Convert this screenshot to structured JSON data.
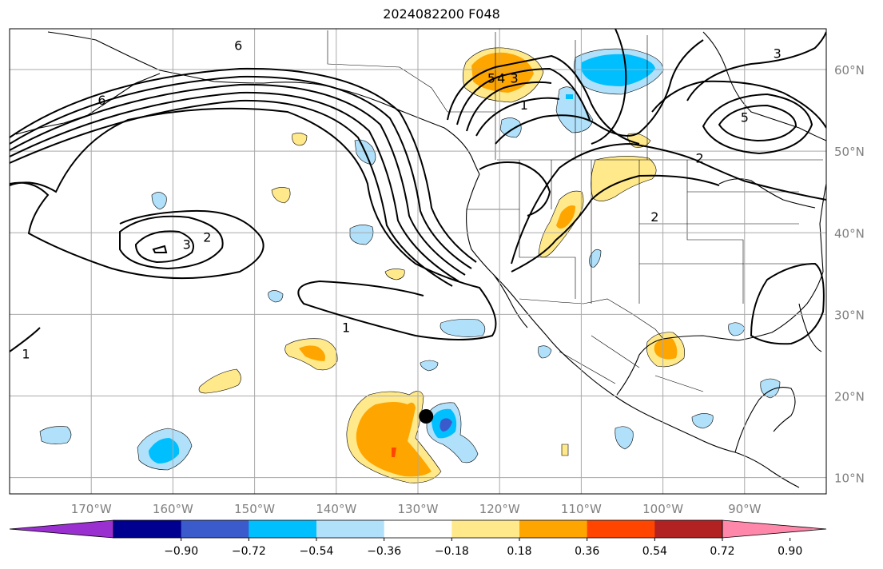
{
  "title": "2024082200 F048",
  "map": {
    "projection": "PlateCarree",
    "lon_range": [
      -180,
      -80
    ],
    "lat_range": [
      8,
      65
    ],
    "gridlines": true,
    "lon_ticks": [
      {
        "lon": -170,
        "label": "170°W"
      },
      {
        "lon": -160,
        "label": "160°W"
      },
      {
        "lon": -150,
        "label": "150°W"
      },
      {
        "lon": -140,
        "label": "140°W"
      },
      {
        "lon": -130,
        "label": "130°W"
      },
      {
        "lon": -120,
        "label": "120°W"
      },
      {
        "lon": -110,
        "label": "110°W"
      },
      {
        "lon": -100,
        "label": "100°W"
      },
      {
        "lon": -90,
        "label": "90°W"
      }
    ],
    "lat_ticks": [
      {
        "lat": 60,
        "label": "60°N"
      },
      {
        "lat": 50,
        "label": "50°N"
      },
      {
        "lat": 40,
        "label": "40°N"
      },
      {
        "lat": 30,
        "label": "30°N"
      },
      {
        "lat": 20,
        "label": "20°N"
      },
      {
        "lat": 10,
        "label": "10°N"
      }
    ],
    "marker": {
      "lon": -129,
      "lat": 17.5,
      "color": "#000000"
    },
    "contour_labels": [
      {
        "lon": -168.7,
        "lat": 56.3,
        "text": "6"
      },
      {
        "lon": -152.0,
        "lat": 63.0,
        "text": "6"
      },
      {
        "lon": -158.3,
        "lat": 38.6,
        "text": "3"
      },
      {
        "lon": -155.8,
        "lat": 39.5,
        "text": "2"
      },
      {
        "lon": -138.8,
        "lat": 28.4,
        "text": "1"
      },
      {
        "lon": -178.0,
        "lat": 25.2,
        "text": "1"
      },
      {
        "lon": -121.0,
        "lat": 59.0,
        "text": "5"
      },
      {
        "lon": -119.8,
        "lat": 59.0,
        "text": "4"
      },
      {
        "lon": -118.2,
        "lat": 59.0,
        "text": "3"
      },
      {
        "lon": -117.0,
        "lat": 55.7,
        "text": "1"
      },
      {
        "lon": -101.0,
        "lat": 42.0,
        "text": "2"
      },
      {
        "lon": -86.0,
        "lat": 62.0,
        "text": "3"
      },
      {
        "lon": -90.0,
        "lat": 54.2,
        "text": "5"
      },
      {
        "lon": -95.5,
        "lat": 49.2,
        "text": "2"
      }
    ]
  },
  "colorbar": {
    "colors": [
      "#9b30d0",
      "#000090",
      "#3b5bcc",
      "#00bfff",
      "#b0e0fa",
      "#ffffff",
      "#ffe98a",
      "#ffa500",
      "#ff4500",
      "#b22222",
      "#ff88aa"
    ],
    "tick_values": [
      -0.9,
      -0.72,
      -0.54,
      -0.36,
      -0.18,
      0.18,
      0.36,
      0.54,
      0.72,
      0.9
    ],
    "tick_labels": [
      "−0.90",
      "−0.72",
      "−0.54",
      "−0.36",
      "−0.18",
      "0.18",
      "0.36",
      "0.54",
      "0.72",
      "0.90"
    ]
  },
  "colors": {
    "ocean": "#ffffff",
    "coast": "#000000",
    "grid": "#a9a9a9",
    "contour": "#000000"
  }
}
